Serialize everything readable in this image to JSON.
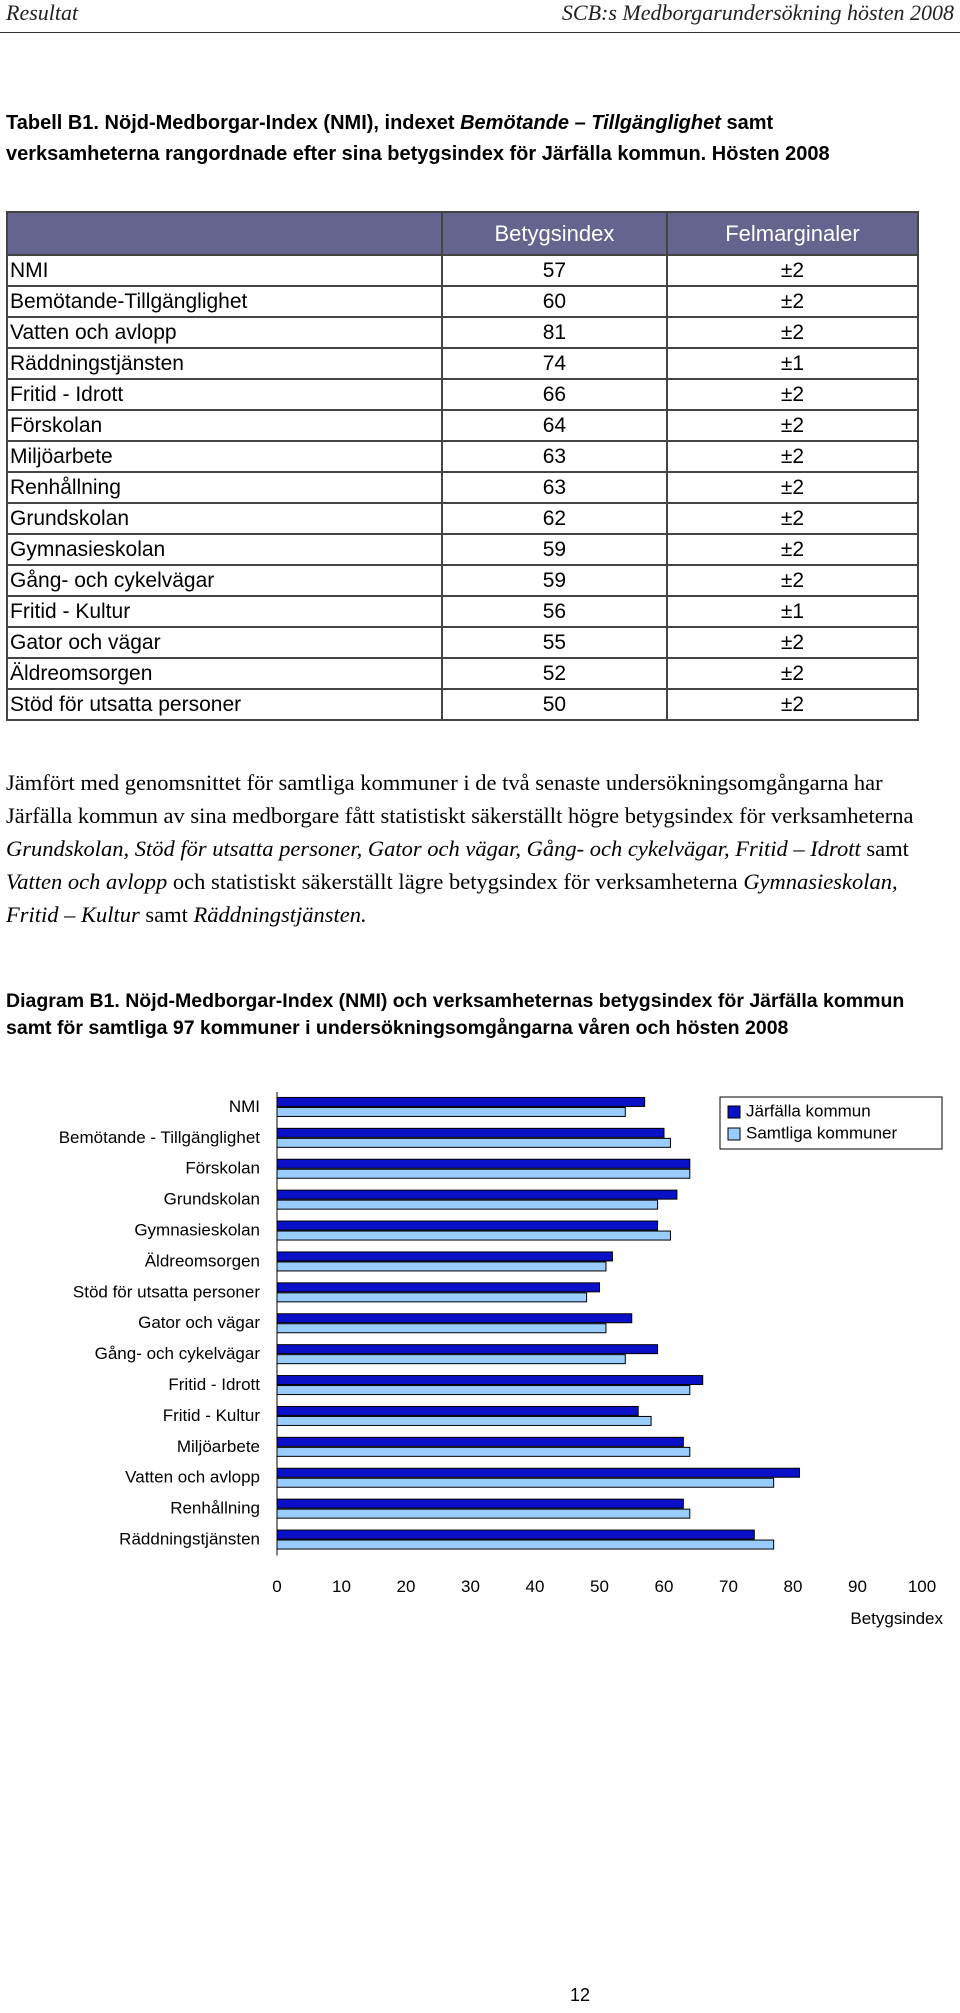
{
  "header": {
    "left": "Resultat",
    "right": "SCB:s Medborgarundersökning hösten 2008"
  },
  "table_title": [
    {
      "text": "Tabell B1. Nöjd-Medborgar-Index (NMI), indexet ",
      "italic": false
    },
    {
      "text": "Bemötande – Tillgänglighet",
      "italic": true
    },
    {
      "text": " samt verksamheterna rangordnade efter sina betygsindex för Järfälla kommun. Hösten 2008",
      "italic": false
    }
  ],
  "table": {
    "columns": [
      "Betygsindex",
      "Felmarginaler"
    ],
    "rows": [
      [
        "NMI",
        57,
        "±2"
      ],
      [
        "Bemötande-Tillgänglighet",
        60,
        "±2"
      ],
      [
        "Vatten och avlopp",
        81,
        "±2"
      ],
      [
        "Räddningstjänsten",
        74,
        "±1"
      ],
      [
        "Fritid - Idrott",
        66,
        "±2"
      ],
      [
        "Förskolan",
        64,
        "±2"
      ],
      [
        "Miljöarbete",
        63,
        "±2"
      ],
      [
        "Renhållning",
        63,
        "±2"
      ],
      [
        "Grundskolan",
        62,
        "±2"
      ],
      [
        "Gymnasieskolan",
        59,
        "±2"
      ],
      [
        "Gång- och cykelvägar",
        59,
        "±2"
      ],
      [
        "Fritid - Kultur",
        56,
        "±1"
      ],
      [
        "Gator och vägar",
        55,
        "±2"
      ],
      [
        "Äldreomsorgen",
        52,
        "±2"
      ],
      [
        "Stöd för utsatta personer",
        50,
        "±2"
      ]
    ]
  },
  "paragraph": [
    {
      "text": "Jämfört med genomsnittet för samtliga kommuner i de två senaste undersökningsomgångarna har Järfälla kommun av sina medborgare fått statistiskt säkerställt högre betygsindex för verksamheterna ",
      "italic": false
    },
    {
      "text": "Grundskolan, Stöd för utsatta personer, Gator och vägar, Gång- och cykelvägar, Fritid – Idrott",
      "italic": true
    },
    {
      "text": " samt ",
      "italic": false
    },
    {
      "text": "Vatten och avlopp",
      "italic": true
    },
    {
      "text": " och statistiskt säkerställt lägre betygsindex för verksamheterna ",
      "italic": false
    },
    {
      "text": "Gymnasieskolan, Fritid – Kultur",
      "italic": true
    },
    {
      "text": " samt ",
      "italic": false
    },
    {
      "text": "Räddningstjänsten.",
      "italic": true
    }
  ],
  "diagram_title": "Diagram B1. Nöjd-Medborgar-Index (NMI) och verksamheternas betygsindex för Järfälla kommun samt för samtliga 97 kommuner i undersökningsomgångarna våren och hösten 2008",
  "chart_data": {
    "type": "bar",
    "orientation": "horizontal",
    "categories": [
      "NMI",
      "Bemötande - Tillgänglighet",
      "Förskolan",
      "Grundskolan",
      "Gymnasieskolan",
      "Äldreomsorgen",
      "Stöd för utsatta personer",
      "Gator och vägar",
      "Gång- och cykelvägar",
      "Fritid - Idrott",
      "Fritid - Kultur",
      "Miljöarbete",
      "Vatten och avlopp",
      "Renhållning",
      "Räddningstjänsten"
    ],
    "series": [
      {
        "name": "Järfälla kommun",
        "color": "#0a10c8",
        "values": [
          57,
          60,
          64,
          62,
          59,
          52,
          50,
          55,
          59,
          66,
          56,
          63,
          81,
          63,
          74
        ]
      },
      {
        "name": "Samtliga kommuner",
        "color": "#99ccff",
        "values": [
          54,
          61,
          64,
          59,
          61,
          51,
          48,
          51,
          54,
          64,
          58,
          64,
          77,
          64,
          77
        ]
      }
    ],
    "xlim": [
      0,
      100
    ],
    "xticks": [
      0,
      10,
      20,
      30,
      40,
      50,
      60,
      70,
      80,
      90,
      100
    ],
    "xlabel": "Betygsindex",
    "legend": "upper right"
  },
  "page_number": "12"
}
